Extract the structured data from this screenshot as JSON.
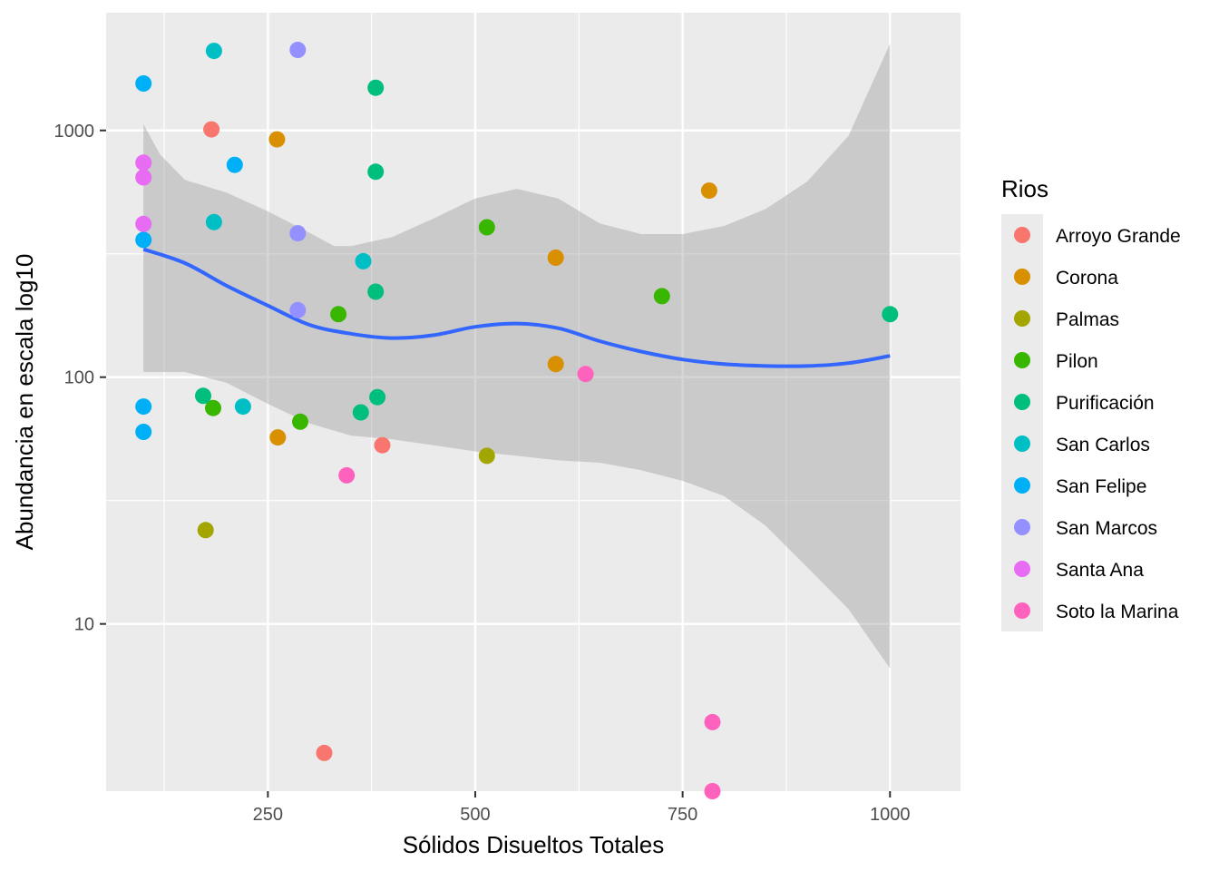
{
  "chart_data": {
    "type": "scatter",
    "xlabel": "Sólidos Disueltos Totales",
    "ylabel": "Abundancia en escala log10",
    "xlim": [
      55,
      1085
    ],
    "ylim": [
      2.1,
      3000
    ],
    "y_scale": "log10",
    "x_ticks": [
      250,
      500,
      750,
      1000
    ],
    "x_tick_labels": [
      "250",
      "500",
      "750",
      "1000"
    ],
    "y_ticks": [
      10,
      100,
      1000
    ],
    "y_tick_labels": [
      "10",
      "100",
      "1000"
    ],
    "grid": true,
    "legend": {
      "title": "Rios",
      "position": "right"
    },
    "series": [
      {
        "name": "Arroyo Grande",
        "color": "#F8766D",
        "points": [
          [
            182,
            1010
          ],
          [
            388,
            53
          ],
          [
            318,
            3
          ]
        ]
      },
      {
        "name": "Corona",
        "color": "#D89000",
        "points": [
          [
            261,
            920
          ],
          [
            782,
            570
          ],
          [
            597,
            305
          ],
          [
            597,
            113
          ],
          [
            262,
            57
          ]
        ]
      },
      {
        "name": "Palmas",
        "color": "#A3A500",
        "points": [
          [
            175,
            24
          ],
          [
            514,
            48
          ]
        ]
      },
      {
        "name": "Pilon",
        "color": "#39B600",
        "points": [
          [
            184,
            75
          ],
          [
            289,
            66
          ],
          [
            335,
            180
          ],
          [
            514,
            405
          ],
          [
            725,
            213
          ]
        ]
      },
      {
        "name": "Purificación",
        "color": "#00BF7D",
        "points": [
          [
            380,
            1490
          ],
          [
            380,
            680
          ],
          [
            380,
            222
          ],
          [
            382,
            83
          ],
          [
            172,
            84
          ],
          [
            362,
            72
          ],
          [
            1000,
            180
          ]
        ]
      },
      {
        "name": "San Carlos",
        "color": "#00BFC4",
        "points": [
          [
            185,
            2100
          ],
          [
            185,
            425
          ],
          [
            365,
            295
          ],
          [
            220,
            76
          ]
        ]
      },
      {
        "name": "San Felipe",
        "color": "#00B0F6",
        "points": [
          [
            100,
            1550
          ],
          [
            210,
            725
          ],
          [
            100,
            360
          ],
          [
            100,
            76
          ],
          [
            100,
            60
          ]
        ]
      },
      {
        "name": "San Marcos",
        "color": "#9590FF",
        "points": [
          [
            286,
            2120
          ],
          [
            286,
            383
          ],
          [
            286,
            187
          ]
        ]
      },
      {
        "name": "Santa Ana",
        "color": "#E76BF3",
        "points": [
          [
            100,
            740
          ],
          [
            100,
            645
          ],
          [
            100,
            418
          ]
        ]
      },
      {
        "name": "Soto la Marina",
        "color": "#FF62BC",
        "points": [
          [
            345,
            40
          ],
          [
            633,
            103
          ],
          [
            786,
            4
          ],
          [
            786,
            2.1
          ]
        ]
      }
    ],
    "smooth": {
      "color": "#3366FF",
      "line": [
        [
          100,
          330
        ],
        [
          150,
          290
        ],
        [
          200,
          235
        ],
        [
          250,
          195
        ],
        [
          300,
          163
        ],
        [
          350,
          150
        ],
        [
          400,
          144
        ],
        [
          450,
          148
        ],
        [
          500,
          160
        ],
        [
          550,
          165
        ],
        [
          600,
          158
        ],
        [
          650,
          140
        ],
        [
          700,
          127
        ],
        [
          750,
          118
        ],
        [
          800,
          113
        ],
        [
          850,
          111
        ],
        [
          900,
          111
        ],
        [
          950,
          114
        ],
        [
          1000,
          122
        ]
      ],
      "upper": [
        [
          100,
          1060
        ],
        [
          120,
          800
        ],
        [
          150,
          630
        ],
        [
          200,
          560
        ],
        [
          250,
          470
        ],
        [
          300,
          385
        ],
        [
          330,
          340
        ],
        [
          350,
          340
        ],
        [
          400,
          370
        ],
        [
          450,
          440
        ],
        [
          500,
          530
        ],
        [
          550,
          580
        ],
        [
          600,
          530
        ],
        [
          650,
          420
        ],
        [
          700,
          380
        ],
        [
          750,
          380
        ],
        [
          800,
          410
        ],
        [
          850,
          480
        ],
        [
          900,
          620
        ],
        [
          950,
          950
        ],
        [
          1000,
          2250
        ]
      ],
      "lower": [
        [
          1000,
          6.6
        ],
        [
          950,
          11.5
        ],
        [
          900,
          17
        ],
        [
          850,
          25
        ],
        [
          800,
          33
        ],
        [
          750,
          38
        ],
        [
          700,
          42
        ],
        [
          650,
          45
        ],
        [
          600,
          46
        ],
        [
          550,
          48
        ],
        [
          500,
          50
        ],
        [
          450,
          53
        ],
        [
          400,
          56
        ],
        [
          350,
          58
        ],
        [
          300,
          65
        ],
        [
          250,
          78
        ],
        [
          200,
          95
        ],
        [
          150,
          105
        ],
        [
          120,
          105
        ],
        [
          100,
          105
        ]
      ]
    }
  }
}
